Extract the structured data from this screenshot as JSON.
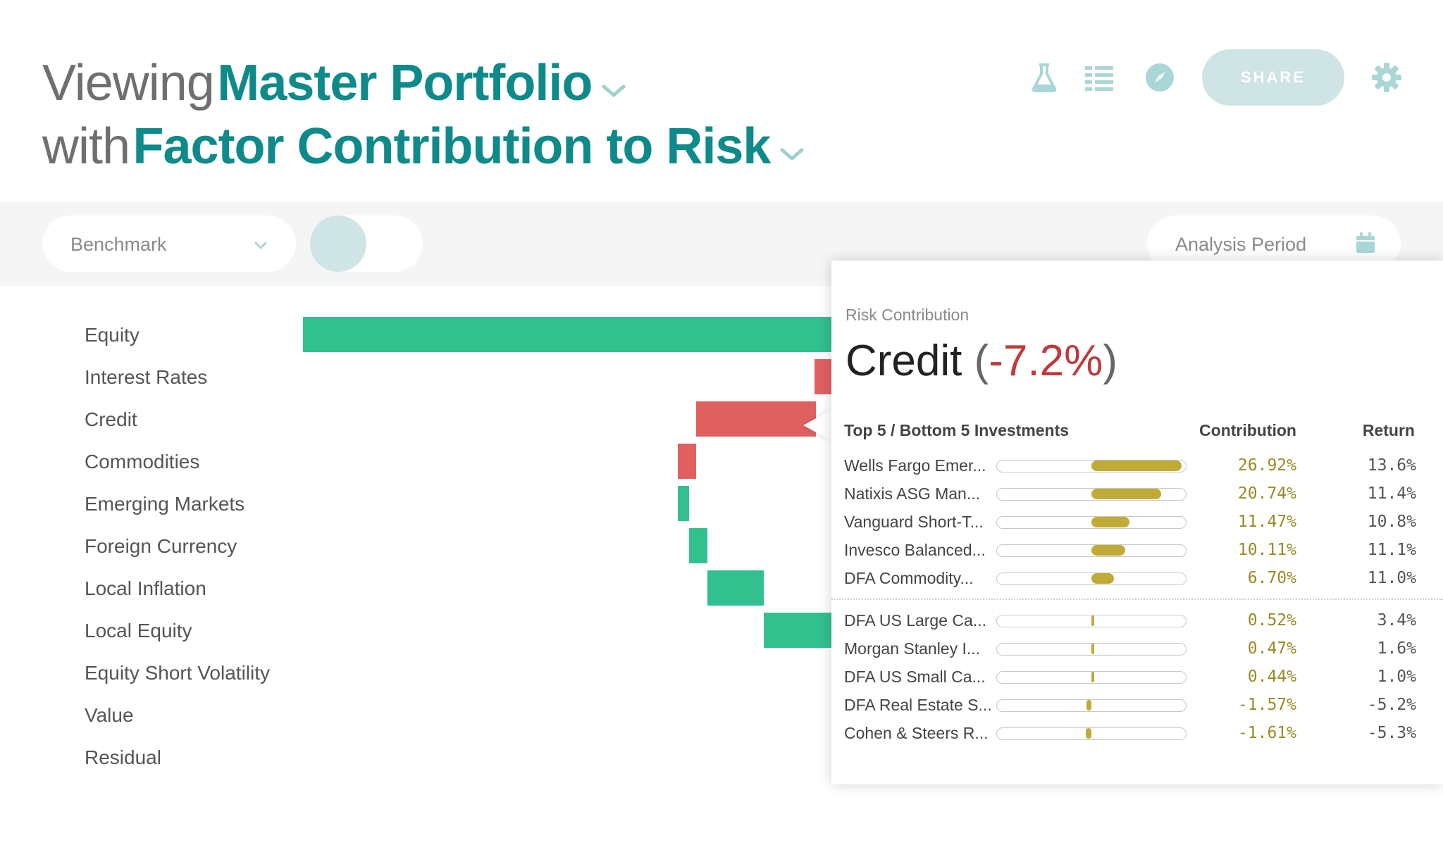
{
  "header": {
    "line1_prefix": "Viewing",
    "line1_value": "Master Portfolio",
    "line2_prefix": "with",
    "line2_value": "Factor Contribution to Risk",
    "share_label": "SHARE",
    "icons": [
      "flask-icon",
      "list-icon",
      "compass-icon",
      "gear-icon"
    ]
  },
  "filters": {
    "benchmark_label": "Benchmark",
    "analysis_period_label": "Analysis Period"
  },
  "colors": {
    "accent": "#0e8a8a",
    "positive": "#33c08f",
    "negative": "#e06060",
    "bar_gold": "#bfab35"
  },
  "factors": [
    {
      "label": "Equity"
    },
    {
      "label": "Interest Rates"
    },
    {
      "label": "Credit"
    },
    {
      "label": "Commodities"
    },
    {
      "label": "Emerging Markets"
    },
    {
      "label": "Foreign Currency"
    },
    {
      "label": "Local Inflation"
    },
    {
      "label": "Local Equity"
    },
    {
      "label": "Equity Short Volatility"
    },
    {
      "label": "Value"
    },
    {
      "label": "Residual"
    }
  ],
  "tooltip": {
    "subtitle": "Risk Contribution",
    "factor": "Credit",
    "value": "-7.2%",
    "col_investments": "Top 5 / Bottom 5 Investments",
    "col_contribution": "Contribution",
    "col_return": "Return",
    "rows": [
      {
        "name": "Wells Fargo Emer...",
        "contribution": "26.92%",
        "return": "13.6%",
        "fill": 26.92
      },
      {
        "name": "Natixis ASG Man...",
        "contribution": "20.74%",
        "return": "11.4%",
        "fill": 20.74
      },
      {
        "name": "Vanguard Short-T...",
        "contribution": "11.47%",
        "return": "10.8%",
        "fill": 11.47
      },
      {
        "name": "Invesco Balanced...",
        "contribution": "10.11%",
        "return": "11.1%",
        "fill": 10.11
      },
      {
        "name": "DFA Commodity...",
        "contribution": "6.70%",
        "return": "11.0%",
        "fill": 6.7
      },
      {
        "name": "DFA US Large Ca...",
        "contribution": "0.52%",
        "return": "3.4%",
        "fill": 0.52
      },
      {
        "name": "Morgan Stanley I...",
        "contribution": "0.47%",
        "return": "1.6%",
        "fill": 0.47
      },
      {
        "name": "DFA US Small Ca...",
        "contribution": "0.44%",
        "return": "1.0%",
        "fill": 0.44
      },
      {
        "name": "DFA Real Estate S...",
        "contribution": "-1.57%",
        "return": "-5.2%",
        "fill": -1.57
      },
      {
        "name": "Cohen & Steers R...",
        "contribution": "-1.61%",
        "return": "-5.3%",
        "fill": -1.61
      }
    ]
  }
}
